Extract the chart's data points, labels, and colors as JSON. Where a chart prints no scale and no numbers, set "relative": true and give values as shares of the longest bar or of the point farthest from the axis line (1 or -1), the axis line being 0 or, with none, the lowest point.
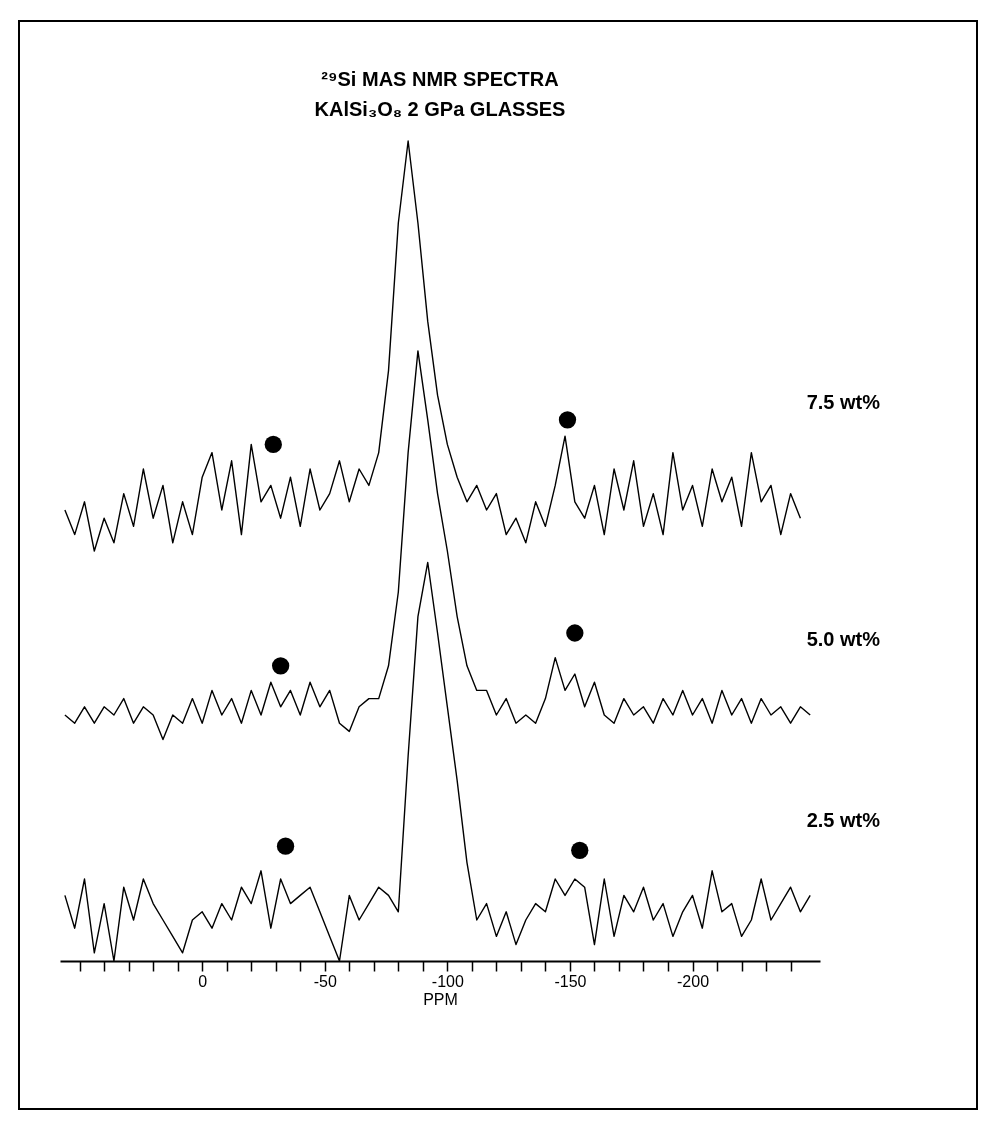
{
  "chart_data": {
    "type": "line",
    "title": "²⁹Si MAS NMR SPECTRA",
    "subtitle": "KAlSi₃O₈ 2 GPa GLASSES",
    "xlabel": "PPM",
    "relative": true,
    "x": [
      56,
      52,
      48,
      44,
      40,
      36,
      32,
      28,
      24,
      20,
      16,
      12,
      8,
      4,
      0,
      -4,
      -8,
      -12,
      -16,
      -20,
      -24,
      -28,
      -32,
      -36,
      -40,
      -44,
      -48,
      -52,
      -56,
      -60,
      -64,
      -68,
      -72,
      -76,
      -80,
      -84,
      -88,
      -92,
      -96,
      -100,
      -104,
      -108,
      -112,
      -116,
      -120,
      -124,
      -128,
      -132,
      -136,
      -140,
      -144,
      -148,
      -152,
      -156,
      -160,
      -164,
      -168,
      -172,
      -176,
      -180,
      -184,
      -188,
      -192,
      -196,
      -200,
      -204,
      -208,
      -212,
      -216,
      -220,
      -224,
      -228,
      -232,
      -236,
      -240,
      -244,
      -248
    ],
    "xlim": [
      58,
      -252
    ],
    "xticks": [
      {
        "value": 50,
        "label": null
      },
      {
        "value": 40,
        "label": null
      },
      {
        "value": 30,
        "label": null
      },
      {
        "value": 20,
        "label": null
      },
      {
        "value": 10,
        "label": null
      },
      0,
      {
        "value": -10,
        "label": null
      },
      {
        "value": -20,
        "label": null
      },
      {
        "value": -30,
        "label": null
      },
      {
        "value": -40,
        "label": null
      },
      -50,
      {
        "value": -60,
        "label": null
      },
      {
        "value": -70,
        "label": null
      },
      {
        "value": -80,
        "label": null
      },
      {
        "value": -90,
        "label": null
      },
      -100,
      {
        "value": -110,
        "label": null
      },
      {
        "value": -120,
        "label": null
      },
      {
        "value": -130,
        "label": null
      },
      {
        "value": -140,
        "label": null
      },
      -150,
      {
        "value": -160,
        "label": null
      },
      {
        "value": -170,
        "label": null
      },
      {
        "value": -180,
        "label": null
      },
      {
        "value": -190,
        "label": null
      },
      -200,
      {
        "value": -210,
        "label": null
      },
      {
        "value": -220,
        "label": null
      },
      {
        "value": -230,
        "label": null
      },
      {
        "value": -240,
        "label": null
      }
    ],
    "tick_labels": "x",
    "series": [
      {
        "name": "7.5  wt%",
        "color": "#000000",
        "values": [
          0.55,
          0.52,
          0.56,
          0.5,
          0.54,
          0.51,
          0.57,
          0.53,
          0.6,
          0.54,
          0.58,
          0.51,
          0.56,
          0.52,
          0.59,
          0.62,
          0.55,
          0.61,
          0.52,
          0.63,
          0.56,
          0.58,
          0.54,
          0.59,
          0.53,
          0.6,
          0.55,
          0.57,
          0.61,
          0.56,
          0.6,
          0.58,
          0.62,
          0.72,
          0.9,
          1.0,
          0.9,
          0.78,
          0.69,
          0.63,
          0.59,
          0.56,
          0.58,
          0.55,
          0.57,
          0.52,
          0.54,
          0.51,
          0.56,
          0.53,
          0.58,
          0.64,
          0.56,
          0.54,
          0.58,
          0.52,
          0.6,
          0.55,
          0.61,
          0.53,
          0.57,
          0.52,
          0.62,
          0.55,
          0.58,
          0.53,
          0.6,
          0.56,
          0.59,
          0.53,
          0.62,
          0.56,
          0.58,
          0.52,
          0.57,
          0.54,
          null
        ]
      },
      {
        "name": "5.0  wt%",
        "color": "#000000",
        "values": [
          0.3,
          0.29,
          0.31,
          0.29,
          0.31,
          0.3,
          0.32,
          0.29,
          0.31,
          0.3,
          0.27,
          0.3,
          0.29,
          0.32,
          0.29,
          0.33,
          0.3,
          0.32,
          0.29,
          0.33,
          0.3,
          0.34,
          0.31,
          0.33,
          0.3,
          0.34,
          0.31,
          0.33,
          0.29,
          0.28,
          0.31,
          0.32,
          0.32,
          0.36,
          0.45,
          0.62,
          0.744,
          0.66,
          0.57,
          0.5,
          0.42,
          0.36,
          0.33,
          0.33,
          0.3,
          0.32,
          0.29,
          0.3,
          0.29,
          0.32,
          0.37,
          0.33,
          0.35,
          0.31,
          0.34,
          0.3,
          0.29,
          0.32,
          0.3,
          0.31,
          0.29,
          0.32,
          0.3,
          0.33,
          0.3,
          0.32,
          0.29,
          0.33,
          0.3,
          0.32,
          0.29,
          0.32,
          0.3,
          0.31,
          0.29,
          0.31,
          0.3
        ]
      },
      {
        "name": "2.5  wt%",
        "color": "#000000",
        "values": [
          0.08,
          0.04,
          0.1,
          0.01,
          0.07,
          0.0,
          0.09,
          0.05,
          0.1,
          0.07,
          0.05,
          0.03,
          0.01,
          0.05,
          0.06,
          0.04,
          0.07,
          0.05,
          0.09,
          0.07,
          0.11,
          0.04,
          0.1,
          0.07,
          0.08,
          0.09,
          0.06,
          0.03,
          0.0,
          0.08,
          0.05,
          0.07,
          0.09,
          0.08,
          0.06,
          0.25,
          0.42,
          0.486,
          0.4,
          0.31,
          0.22,
          0.12,
          0.05,
          0.07,
          0.03,
          0.06,
          0.02,
          0.05,
          0.07,
          0.06,
          0.1,
          0.08,
          0.1,
          0.09,
          0.02,
          0.1,
          0.03,
          0.08,
          0.06,
          0.09,
          0.05,
          0.07,
          0.03,
          0.06,
          0.08,
          0.04,
          0.11,
          0.06,
          0.07,
          0.03,
          0.05,
          0.1,
          0.05,
          0.07,
          0.09,
          0.06,
          0.08
        ]
      },
      {
        "type": "scatter",
        "marker": "circle",
        "color": "#000000",
        "x": [
          -29,
          -149,
          -32,
          -152,
          -34,
          -154
        ],
        "values": [
          0.63,
          0.66,
          0.36,
          0.4,
          0.14,
          0.135
        ]
      }
    ]
  }
}
